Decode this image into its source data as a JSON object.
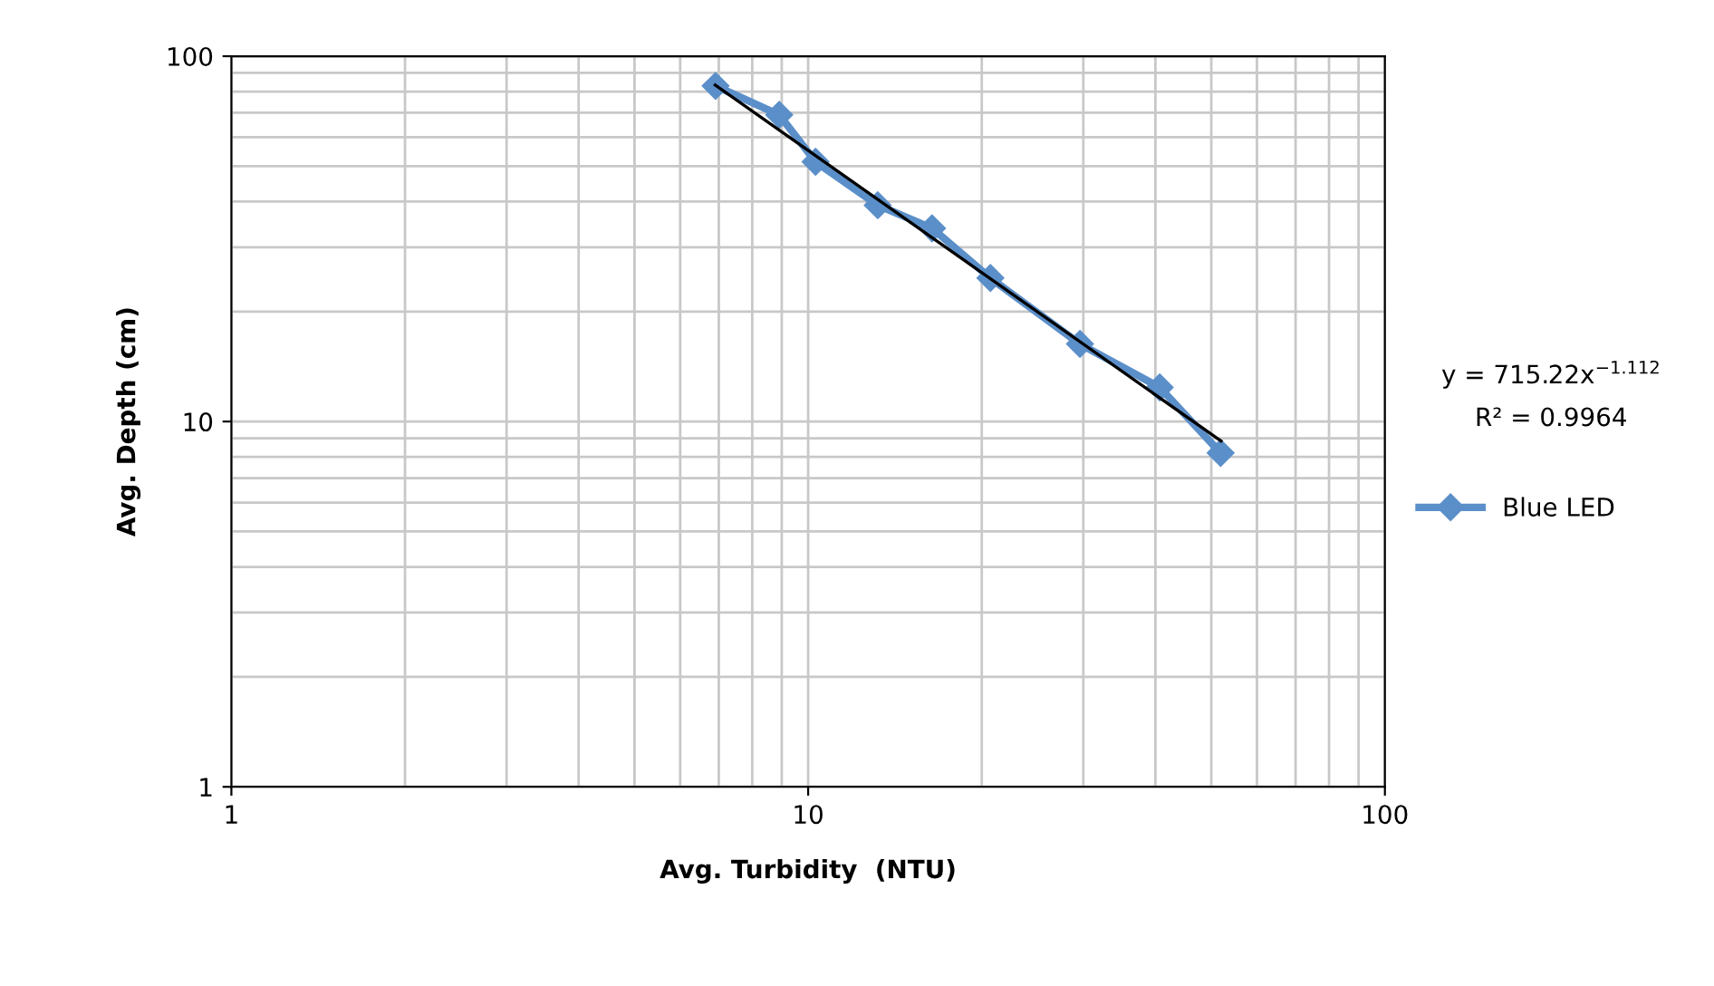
{
  "chart_data": {
    "type": "line",
    "xlabel": "Avg. Turbidity  (NTU)",
    "ylabel": "Avg. Depth (cm)",
    "log": "xy",
    "xlim": [
      1,
      100
    ],
    "ylim": [
      1,
      100
    ],
    "xticks": [
      1,
      10,
      100
    ],
    "yticks": [
      1,
      10,
      100
    ],
    "grid": true,
    "legend": "right",
    "marker": "diamond",
    "series": [
      {
        "name": "Blue LED",
        "color": "#5b8fc9",
        "x": [
          6.91,
          8.91,
          10.3,
          13.2,
          16.4,
          20.7,
          29.6,
          40.7,
          51.9
        ],
        "values": [
          82.9,
          69.1,
          51.4,
          39.1,
          33.8,
          24.7,
          16.3,
          12.4,
          8.2
        ]
      },
      {
        "type": "line",
        "color": "#000000",
        "marker": "none",
        "x": [
          6.9,
          52
        ],
        "values": [
          83.4,
          8.84
        ]
      }
    ],
    "annotations": [
      "y = 715.22x$^{−1.112}$",
      "R² = 0.9964"
    ]
  }
}
